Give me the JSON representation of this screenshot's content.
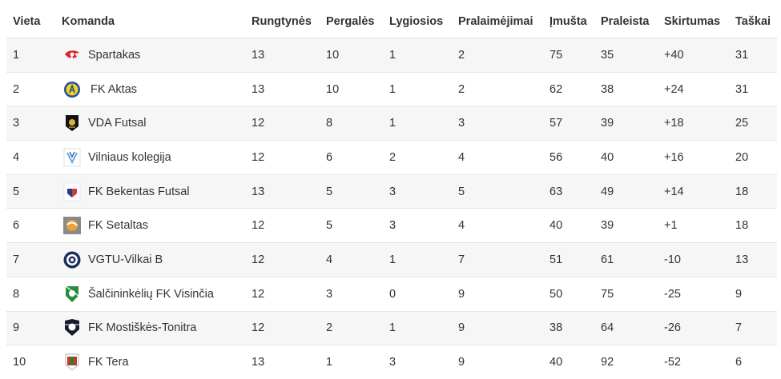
{
  "headers": [
    "Vieta",
    "Komanda",
    "Rungtynės",
    "Pergalės",
    "Lygiosios",
    "Pralaimėjimai",
    "Įmušta",
    "Praleista",
    "Skirtumas",
    "Taškai"
  ],
  "rows": [
    {
      "pos": "1",
      "team": "Spartakas",
      "logo_icon": "spartak-logo-icon",
      "played": "13",
      "won": "10",
      "drawn": "1",
      "lost": "2",
      "scored": "75",
      "conceded": "35",
      "diff": "+40",
      "points": "31"
    },
    {
      "pos": "2",
      "team": "FK Aktas",
      "logo_icon": "aktas-logo-icon",
      "played": "13",
      "won": "10",
      "drawn": "1",
      "lost": "2",
      "scored": "62",
      "conceded": "38",
      "diff": "+24",
      "points": "31"
    },
    {
      "pos": "3",
      "team": "VDA Futsal",
      "logo_icon": "vda-logo-icon",
      "played": "12",
      "won": "8",
      "drawn": "1",
      "lost": "3",
      "scored": "57",
      "conceded": "39",
      "diff": "+18",
      "points": "25"
    },
    {
      "pos": "4",
      "team": "Vilniaus kolegija",
      "logo_icon": "kolegija-logo-icon",
      "played": "12",
      "won": "6",
      "drawn": "2",
      "lost": "4",
      "scored": "56",
      "conceded": "40",
      "diff": "+16",
      "points": "20"
    },
    {
      "pos": "5",
      "team": "FK Bekentas Futsal",
      "logo_icon": "bekentas-logo-icon",
      "played": "13",
      "won": "5",
      "drawn": "3",
      "lost": "5",
      "scored": "63",
      "conceded": "49",
      "diff": "+14",
      "points": "18"
    },
    {
      "pos": "6",
      "team": "FK Setaltas",
      "logo_icon": "setaltas-logo-icon",
      "played": "12",
      "won": "5",
      "drawn": "3",
      "lost": "4",
      "scored": "40",
      "conceded": "39",
      "diff": "+1",
      "points": "18"
    },
    {
      "pos": "7",
      "team": "VGTU-Vilkai B",
      "logo_icon": "vilkai-logo-icon",
      "played": "12",
      "won": "4",
      "drawn": "1",
      "lost": "7",
      "scored": "51",
      "conceded": "61",
      "diff": "-10",
      "points": "13"
    },
    {
      "pos": "8",
      "team": "Šalčininkėlių FK Visinčia",
      "logo_icon": "visincia-logo-icon",
      "played": "12",
      "won": "3",
      "drawn": "0",
      "lost": "9",
      "scored": "50",
      "conceded": "75",
      "diff": "-25",
      "points": "9"
    },
    {
      "pos": "9",
      "team": "FK Mostiškės-Tonitra",
      "logo_icon": "mostiskes-logo-icon",
      "played": "12",
      "won": "2",
      "drawn": "1",
      "lost": "9",
      "scored": "38",
      "conceded": "64",
      "diff": "-26",
      "points": "7"
    },
    {
      "pos": "10",
      "team": "FK Tera",
      "logo_icon": "tera-logo-icon",
      "played": "13",
      "won": "1",
      "drawn": "3",
      "lost": "9",
      "scored": "40",
      "conceded": "92",
      "diff": "-52",
      "points": "6"
    }
  ],
  "colors": {
    "text": "#333333",
    "stripe": "#f6f6f6",
    "border": "#e6e6e6"
  }
}
